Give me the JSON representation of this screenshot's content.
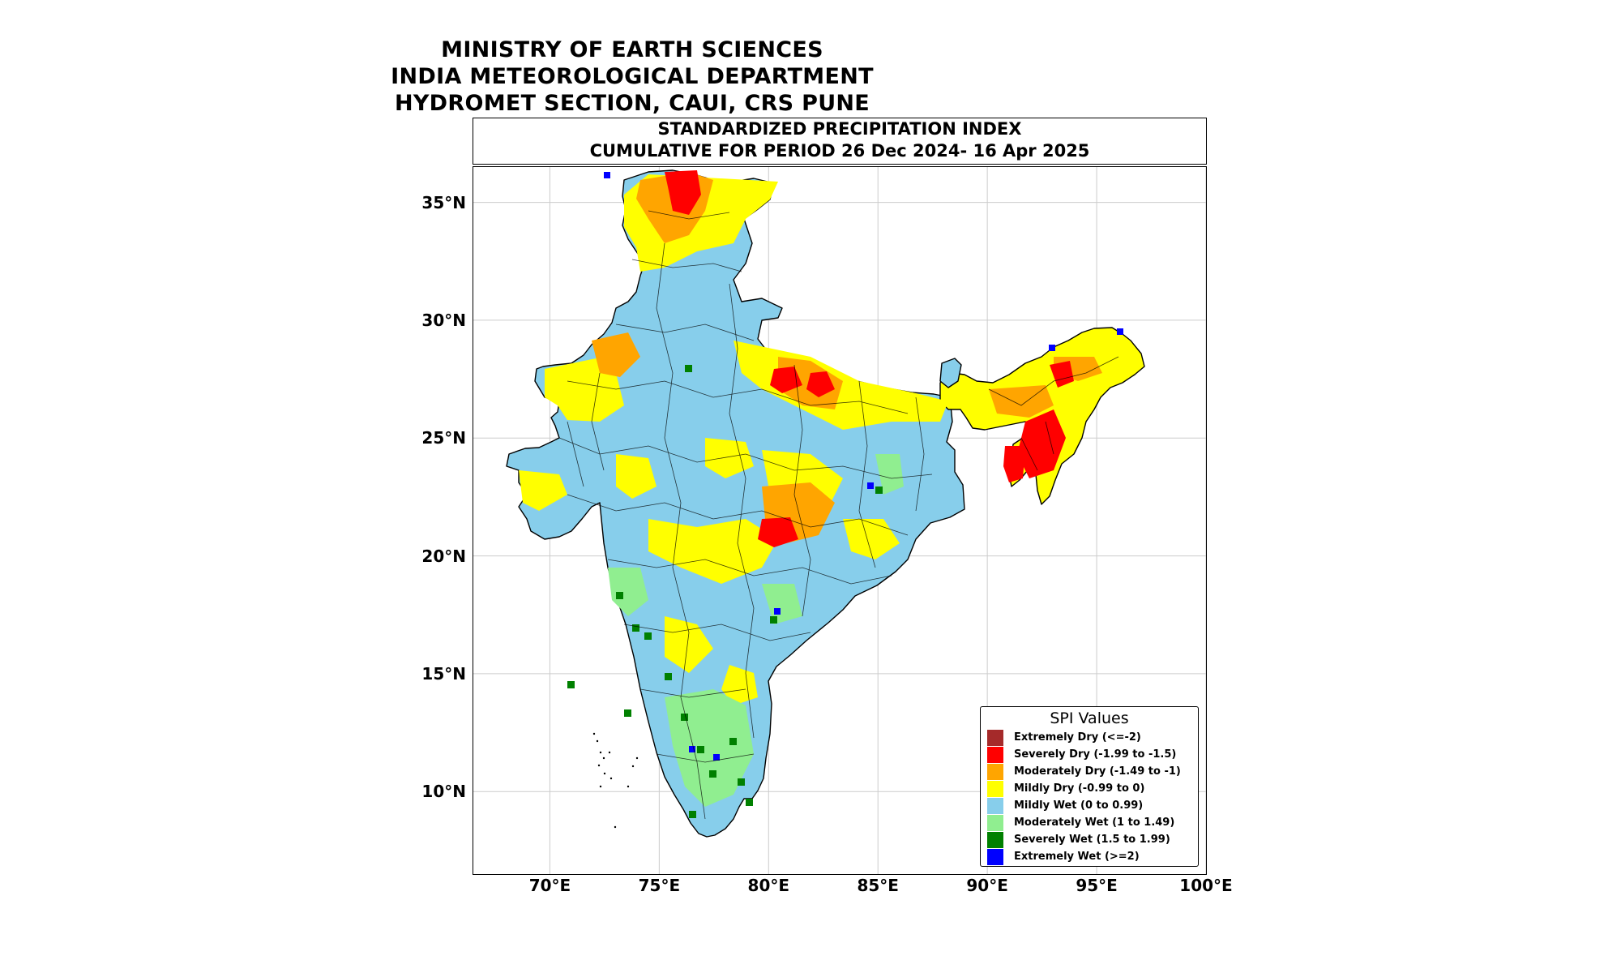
{
  "header": {
    "line1": "MINISTRY OF EARTH SCIENCES",
    "line2": "INDIA METEOROLOGICAL DEPARTMENT",
    "line3": "HYDROMET SECTION, CAUI, CRS PUNE"
  },
  "map_title": {
    "line1": "STANDARDIZED PRECIPITATION INDEX",
    "line2": "CUMULATIVE FOR PERIOD 26 Dec 2024- 16 Apr 2025"
  },
  "axes": {
    "lat_ticks": [
      "35°N",
      "30°N",
      "25°N",
      "20°N",
      "15°N",
      "10°N"
    ],
    "lon_ticks": [
      "70°E",
      "75°E",
      "80°E",
      "85°E",
      "90°E",
      "95°E",
      "100°E"
    ],
    "lat_values": [
      35,
      30,
      25,
      20,
      15,
      10
    ],
    "lon_values": [
      70,
      75,
      80,
      85,
      90,
      95,
      100
    ],
    "grid": true
  },
  "legend": {
    "title": "SPI Values",
    "items": [
      {
        "label": "Extremely Dry (<=-2)",
        "color": "#a52a2a"
      },
      {
        "label": "Severely Dry (-1.99 to -1.5)",
        "color": "#ff0000"
      },
      {
        "label": "Moderately Dry (-1.49 to -1)",
        "color": "#ffa500"
      },
      {
        "label": "Mildly Dry (-0.99 to 0)",
        "color": "#ffff00"
      },
      {
        "label": "Mildly Wet (0 to 0.99)",
        "color": "#87ceeb"
      },
      {
        "label": "Moderately Wet (1 to 1.49)",
        "color": "#90ee90"
      },
      {
        "label": "Severely Wet (1.5 to 1.99)",
        "color": "#008000"
      },
      {
        "label": "Extremely Wet (>=2)",
        "color": "#0000ff"
      }
    ]
  }
}
